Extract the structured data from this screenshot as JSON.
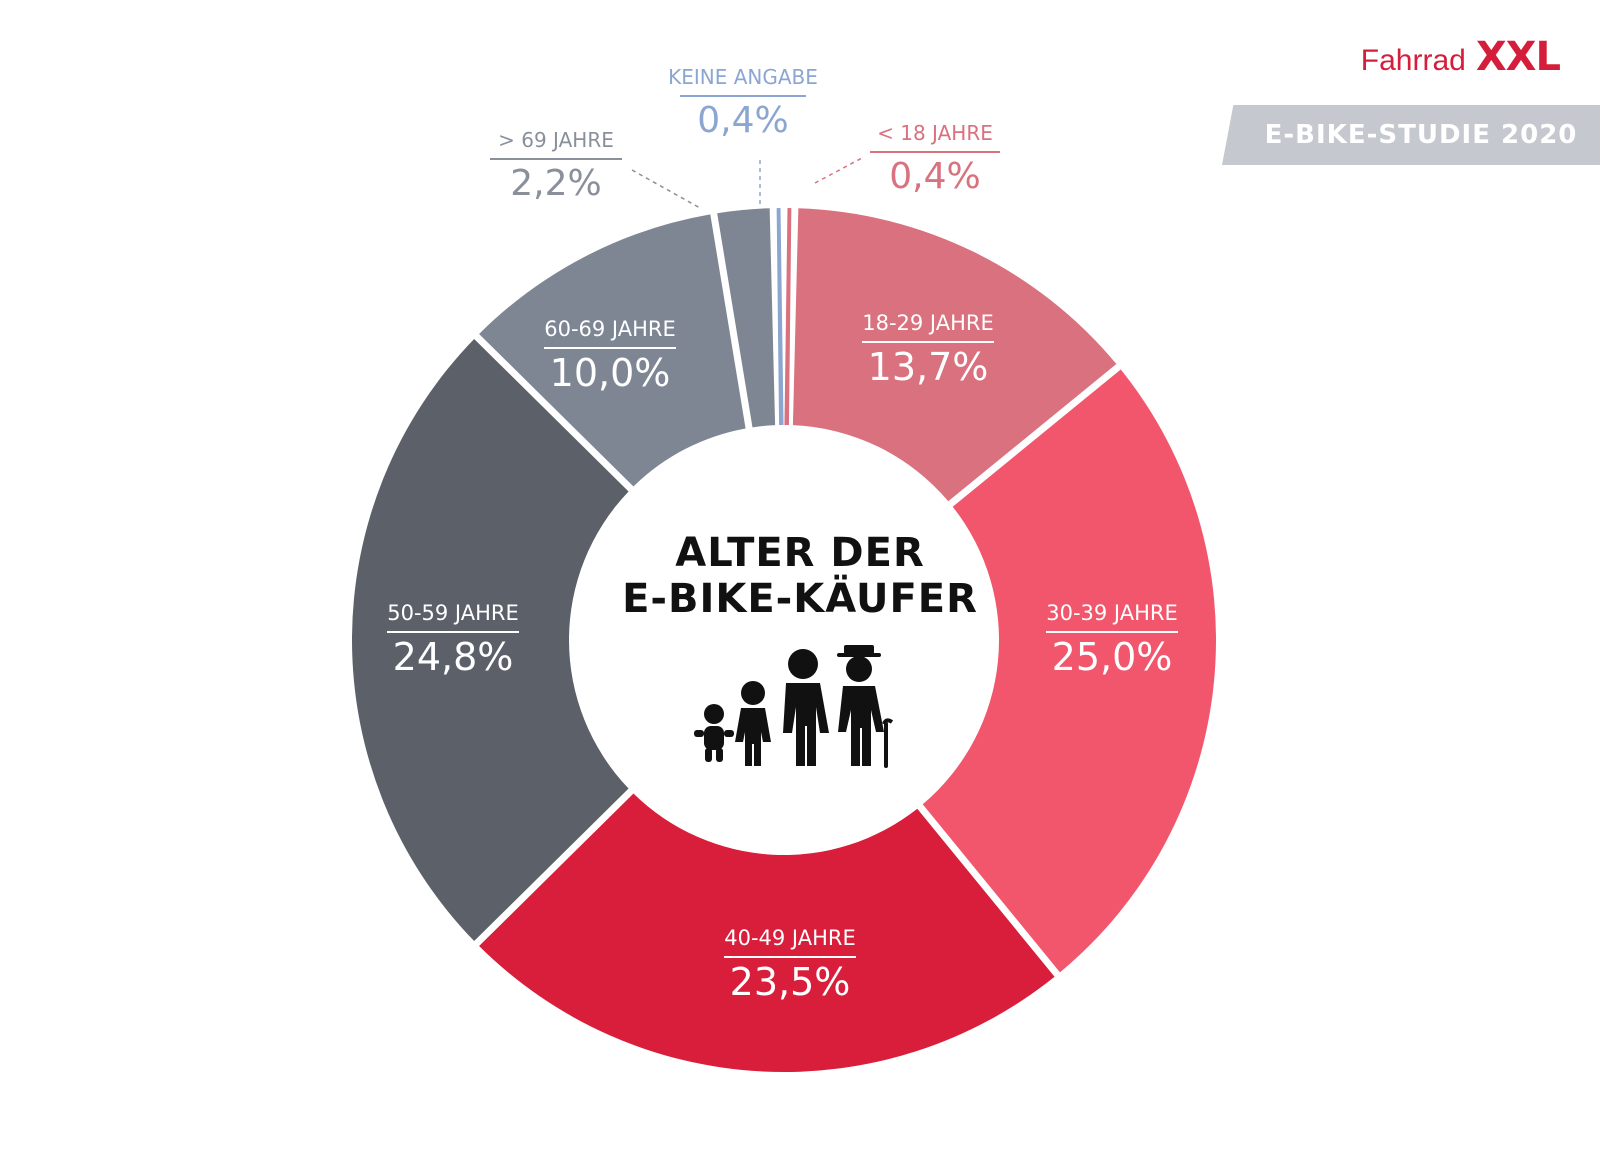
{
  "brand": {
    "name": "Fahrrad",
    "mark": "XXL"
  },
  "badge": {
    "text": "E-BIKE-STUDIE 2020"
  },
  "center": {
    "line1": "ALTER DER",
    "line2": "E-BIKE-KÄUFER"
  },
  "icons": {
    "people": "family-generations-icon"
  },
  "chart_data": {
    "type": "pie",
    "variant": "donut",
    "title": "ALTER DER E-BIKE-KÄUFER",
    "unit": "%",
    "slices": [
      {
        "label": "< 18 JAHRE",
        "value": 0.4,
        "value_label": "0,4%",
        "color": "#d9717e"
      },
      {
        "label": "18-29 JAHRE",
        "value": 13.7,
        "value_label": "13,7%",
        "color": "#d9717e"
      },
      {
        "label": "30-39 JAHRE",
        "value": 25.0,
        "value_label": "25,0%",
        "color": "#f2566c"
      },
      {
        "label": "40-49 JAHRE",
        "value": 23.5,
        "value_label": "23,5%",
        "color": "#d81e3a"
      },
      {
        "label": "50-59 JAHRE",
        "value": 24.8,
        "value_label": "24,8%",
        "color": "#5b6069"
      },
      {
        "label": "60-69 JAHRE",
        "value": 10.0,
        "value_label": "10,0%",
        "color": "#7e8694"
      },
      {
        "label": "> 69 JAHRE",
        "value": 2.2,
        "value_label": "2,2%",
        "color": "#7e8694"
      },
      {
        "label": "KEINE ANGABE",
        "value": 0.4,
        "value_label": "0,4%",
        "color": "#8aa6d1"
      }
    ]
  }
}
